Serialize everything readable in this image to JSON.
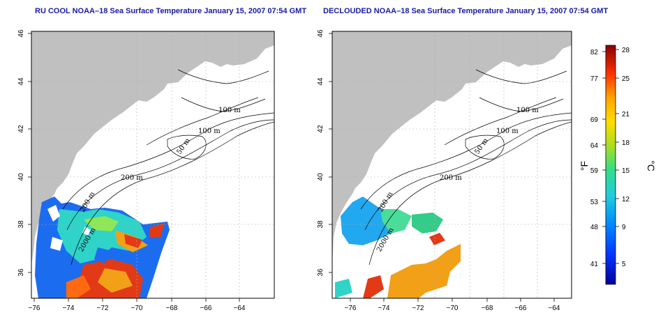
{
  "panels": [
    {
      "title": "RU COOL NOAA–18 Sea Surface Temperature January 15, 2007 07:54 GMT",
      "contour_labels": [
        "100 m",
        "100 m",
        "50 m",
        "200 m",
        "200 m",
        "2000 m"
      ]
    },
    {
      "title": "DECLOUDED NOAA–18 Sea Surface Temperature January 15, 2007 07:54 GMT",
      "contour_labels": [
        "100 m",
        "100 m",
        "50 m",
        "200 m",
        "200 m",
        "2000 m"
      ]
    }
  ],
  "map_axes": {
    "x_ticks": [
      "−76",
      "−74",
      "−72",
      "−70",
      "−68",
      "−66",
      "−64"
    ],
    "y_ticks": [
      "36",
      "38",
      "40",
      "42",
      "44",
      "46"
    ]
  },
  "colorbar": {
    "f_ticks": [
      "82",
      "77",
      "69",
      "64",
      "59",
      "53",
      "48",
      "41"
    ],
    "c_ticks": [
      "28",
      "25",
      "21",
      "18",
      "15",
      "12",
      "9",
      "5"
    ],
    "f_label": "°F",
    "c_label": "°C"
  },
  "colors": {
    "land": "#c0c0c0",
    "title": "#1a1aa6",
    "grid": "#b0b0b0"
  }
}
